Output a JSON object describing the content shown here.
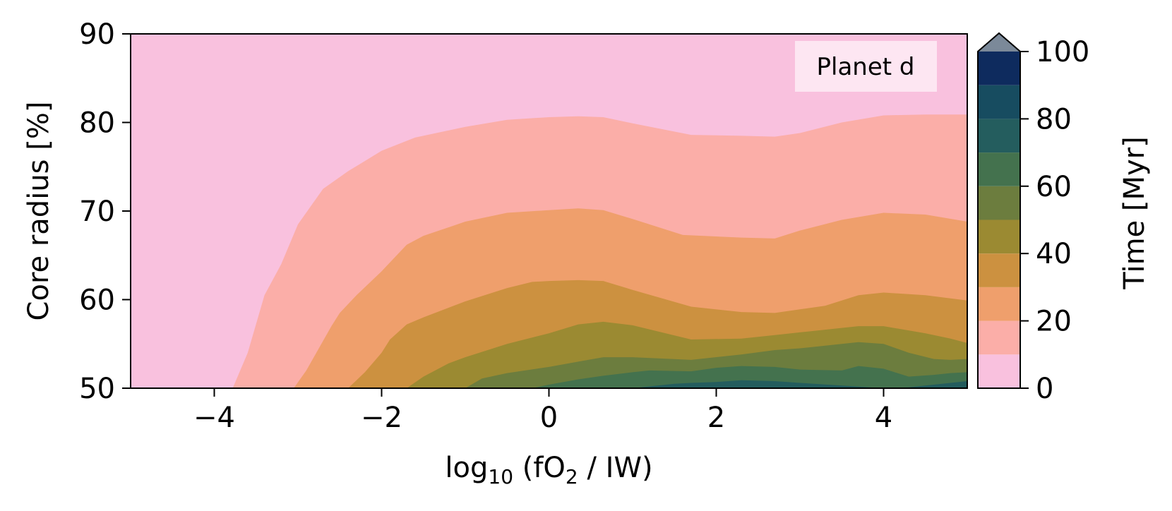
{
  "chart_data": {
    "type": "contourf",
    "xlabel": {
      "base": "log",
      "sub": "10",
      "mid": " (fO",
      "sub2": "2",
      "tail": " / IW)"
    },
    "ylabel": "Core radius [%]",
    "annotation": "Planet d",
    "xlim": [
      -5,
      5
    ],
    "ylim": [
      50,
      90
    ],
    "xticks": [
      -4,
      -2,
      0,
      2,
      4
    ],
    "xtick_labels": [
      "−4",
      "−2",
      "0",
      "2",
      "4"
    ],
    "yticks": [
      50,
      60,
      70,
      80,
      90
    ],
    "ytick_labels": [
      "50",
      "60",
      "70",
      "80",
      "90"
    ],
    "colorbar": {
      "label": "Time [Myr]",
      "min": 0,
      "max": 100,
      "extend": "max",
      "ticks": [
        0,
        20,
        40,
        60,
        80,
        100
      ],
      "tick_labels": [
        "0",
        "20",
        "40",
        "60",
        "80",
        "100"
      ],
      "levels": [
        0,
        10,
        20,
        30,
        40,
        50,
        60,
        70,
        80,
        90,
        100
      ],
      "colors": [
        "#f9c1de",
        "#fbaea8",
        "#ef9f6c",
        "#cc9140",
        "#9b8a32",
        "#6c7d3e",
        "#44724e",
        "#245d5e",
        "#174c60",
        "#0e2b5e"
      ],
      "extend_color": "#7b8999"
    },
    "contour_boundaries": [
      {
        "level": 10,
        "x": [
          -3.78,
          -3.6,
          -3.4,
          -3.2,
          -3.0,
          -2.7,
          -2.4,
          -2.0,
          -1.6,
          -1.0,
          -0.5,
          0.0,
          0.35,
          0.65,
          1.0,
          1.7,
          2.3,
          2.7,
          3.0,
          3.5,
          4.0,
          4.5,
          5.0
        ],
        "y": [
          50,
          54.0,
          60.5,
          64.0,
          68.5,
          72.5,
          74.5,
          76.8,
          78.3,
          79.5,
          80.3,
          80.6,
          80.7,
          80.6,
          79.9,
          78.6,
          78.5,
          78.4,
          78.8,
          80.0,
          80.8,
          80.9,
          80.9
        ]
      },
      {
        "level": 20,
        "x": [
          -3.05,
          -2.9,
          -2.75,
          -2.6,
          -2.5,
          -2.3,
          -2.0,
          -1.7,
          -1.5,
          -1.0,
          -0.5,
          0.0,
          0.35,
          0.65,
          1.0,
          1.6,
          2.3,
          2.7,
          3.0,
          3.5,
          4.0,
          4.5,
          5.0
        ],
        "y": [
          50,
          52.0,
          54.5,
          57.0,
          58.5,
          60.5,
          63.2,
          66.2,
          67.2,
          68.8,
          69.8,
          70.1,
          70.3,
          70.1,
          69.1,
          67.3,
          67.0,
          66.9,
          67.8,
          69.0,
          69.8,
          69.6,
          68.8
        ]
      },
      {
        "level": 30,
        "x": [
          -2.4,
          -2.2,
          -2.0,
          -1.9,
          -1.7,
          -1.5,
          -1.0,
          -0.5,
          -0.2,
          0.0,
          0.35,
          0.65,
          1.0,
          1.7,
          2.3,
          2.7,
          3.0,
          3.3,
          3.7,
          4.0,
          4.5,
          5.0
        ],
        "y": [
          50,
          51.8,
          54.0,
          55.5,
          57.2,
          58.0,
          59.8,
          61.3,
          62.0,
          62.1,
          62.2,
          62.1,
          61.1,
          59.2,
          58.6,
          58.5,
          58.9,
          59.3,
          60.5,
          60.8,
          60.5,
          59.9
        ]
      },
      {
        "level": 40,
        "x": [
          -1.7,
          -1.5,
          -1.2,
          -1.0,
          -0.5,
          0.0,
          0.35,
          0.65,
          1.0,
          1.7,
          2.3,
          2.7,
          3.0,
          3.5,
          3.7,
          4.0,
          4.5,
          4.8,
          5.0
        ],
        "y": [
          50,
          51.3,
          52.8,
          53.5,
          55.0,
          56.2,
          57.2,
          57.5,
          57.1,
          55.5,
          55.6,
          56.0,
          56.3,
          56.8,
          57.0,
          57.0,
          56.2,
          55.6,
          55.1
        ]
      },
      {
        "level": 50,
        "x": [
          -1.0,
          -0.8,
          -0.5,
          0.0,
          0.35,
          0.65,
          1.0,
          1.7,
          2.3,
          2.7,
          3.0,
          3.5,
          3.7,
          4.0,
          4.3,
          4.6,
          4.8,
          5.0
        ],
        "y": [
          50,
          51.1,
          51.7,
          52.4,
          53.0,
          53.5,
          53.5,
          53.2,
          53.8,
          54.3,
          54.5,
          55.0,
          55.2,
          55.0,
          54.0,
          53.3,
          53.2,
          53.3
        ]
      },
      {
        "level": 60,
        "x": [
          -0.2,
          0.0,
          0.35,
          0.65,
          1.0,
          1.2,
          1.7,
          2.0,
          2.3,
          2.7,
          3.0,
          3.5,
          3.7,
          4.0,
          4.3,
          4.6,
          4.8,
          5.0
        ],
        "y": [
          50,
          50.4,
          51.0,
          51.4,
          51.8,
          52.0,
          51.9,
          52.3,
          52.5,
          52.4,
          52.1,
          52.0,
          52.5,
          52.2,
          51.3,
          51.5,
          51.7,
          51.8
        ]
      },
      {
        "level": 70,
        "x": [
          1.0,
          1.2,
          1.5,
          1.7,
          2.0,
          2.3,
          2.7,
          3.0,
          3.5,
          4.0,
          4.3,
          4.6,
          4.8,
          5.0
        ],
        "y": [
          50,
          50.2,
          50.5,
          50.6,
          50.7,
          50.9,
          50.8,
          50.6,
          50.3,
          50.0,
          50.1,
          50.4,
          50.6,
          50.8
        ]
      }
    ]
  }
}
